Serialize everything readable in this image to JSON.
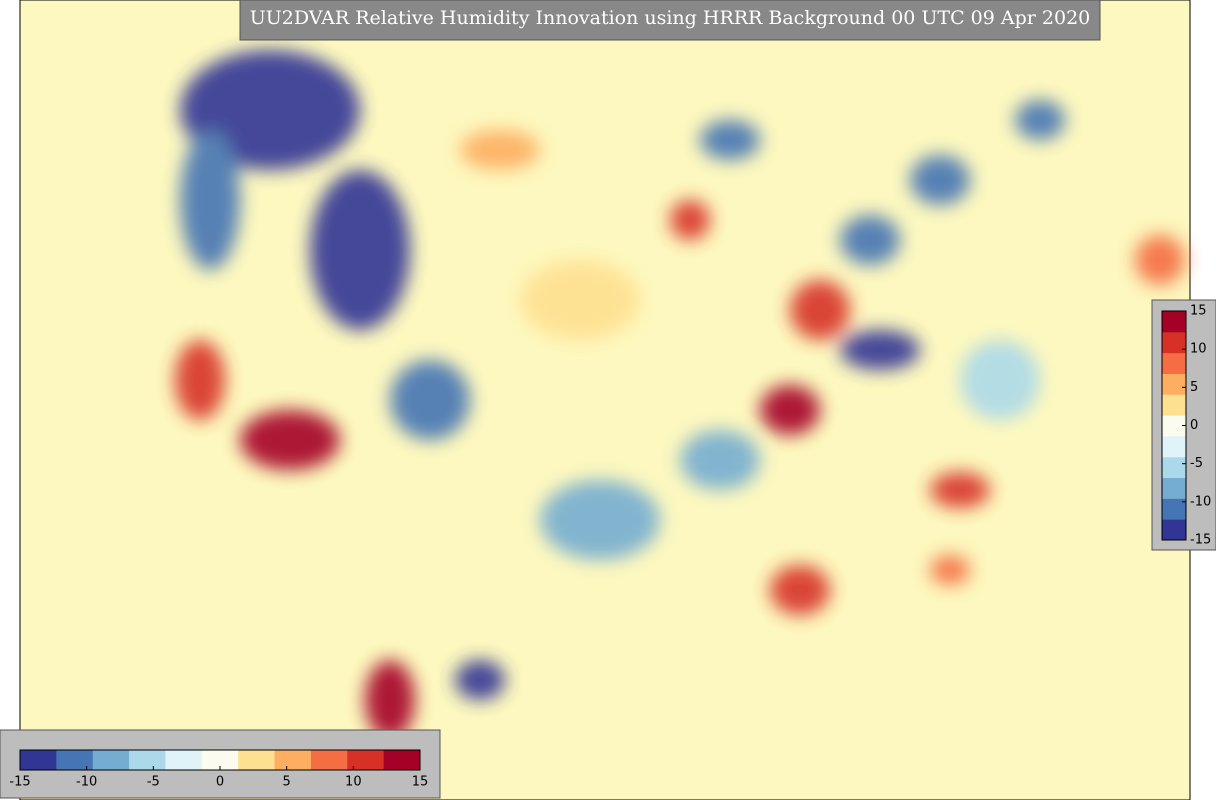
{
  "title": "UU2DVAR Relative Humidity Innovation using HRRR Background 00 UTC 09 Apr 2020",
  "colorbar": {
    "lim": [
      -15,
      15
    ],
    "ticks": [
      -15,
      -10,
      -5,
      0,
      5,
      10,
      15
    ],
    "colors": [
      "#313695",
      "#4575b4",
      "#74add1",
      "#abd9e9",
      "#e0f3f8",
      "#fbfbf0",
      "#fee090",
      "#fdae61",
      "#f46d43",
      "#d73027",
      "#a50026"
    ]
  }
}
